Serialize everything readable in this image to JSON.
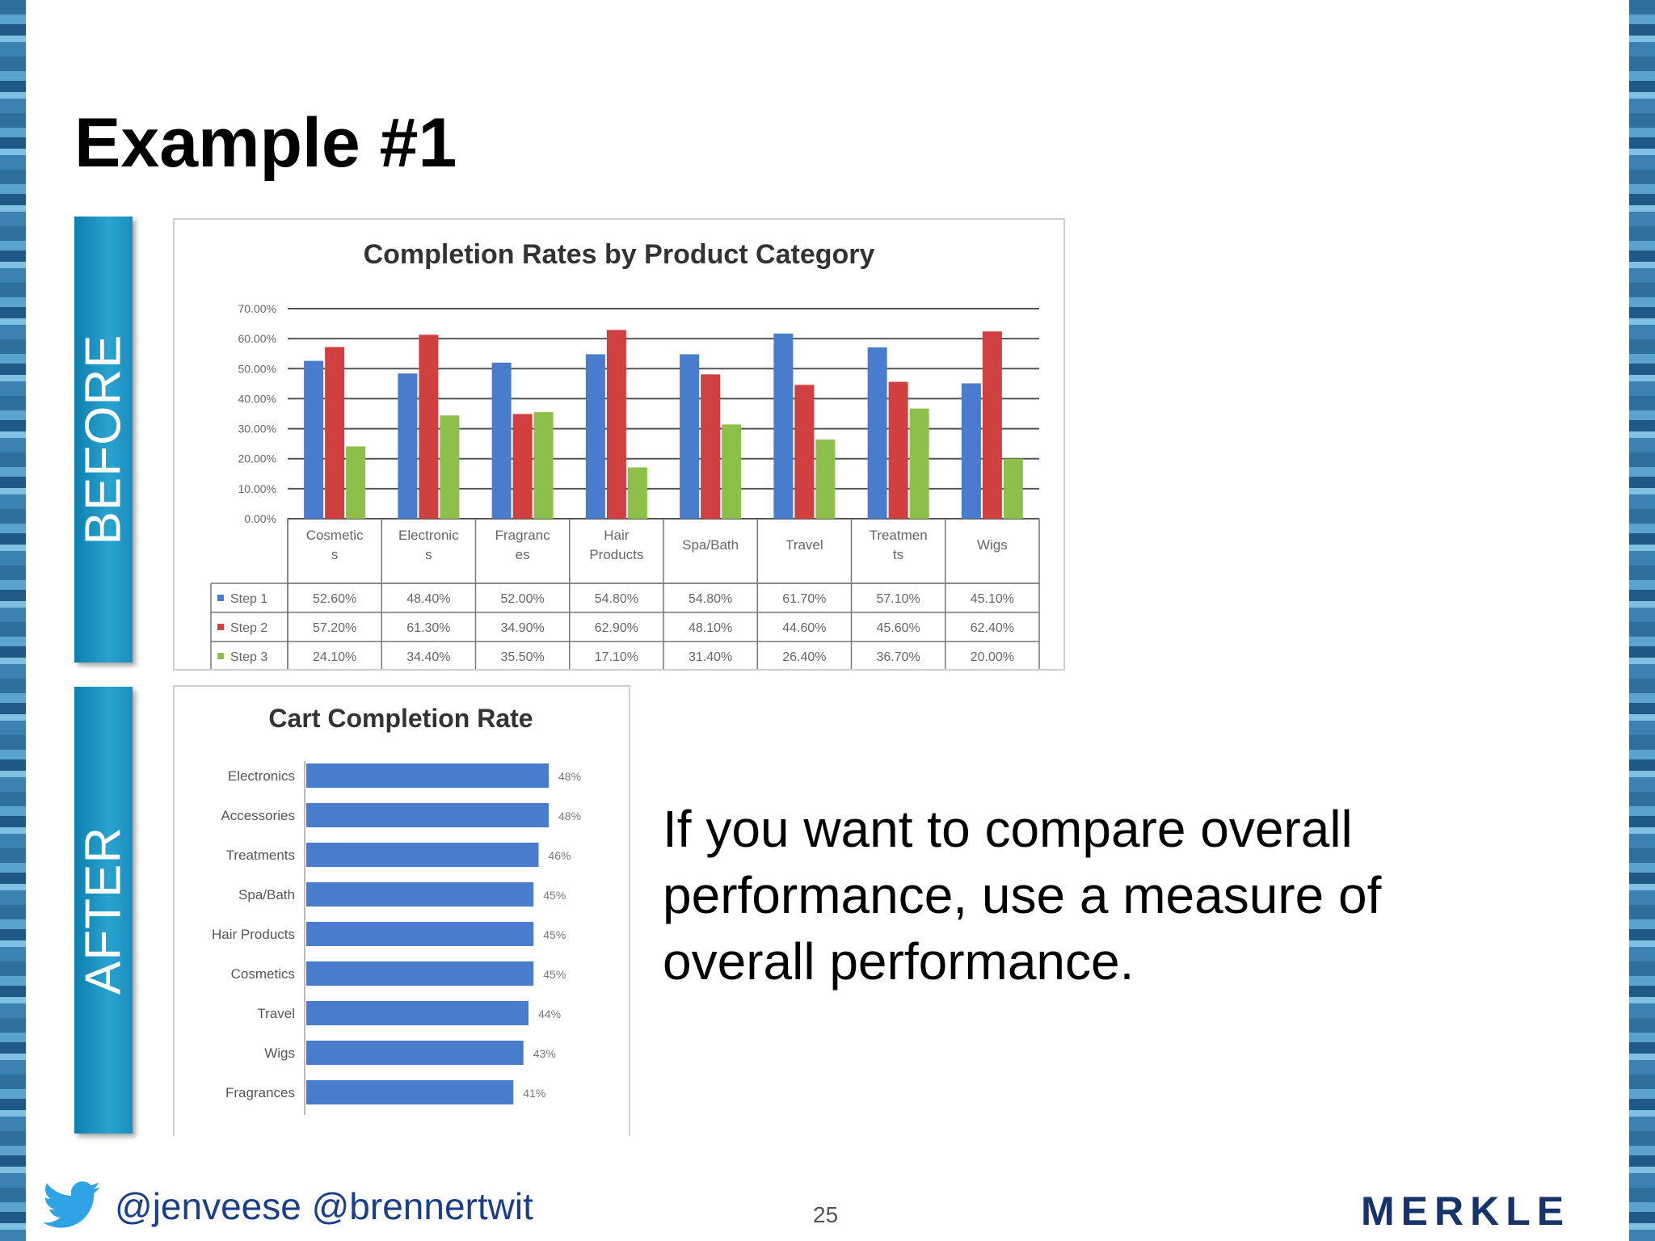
{
  "slide": {
    "title": "Example #1",
    "before_label": "BEFORE",
    "after_label": "AFTER",
    "body_text": "If you want to compare overall performance, use a measure of overall performance.",
    "handles": "@jenveese @brennertwit",
    "page_number": "25",
    "logo_text": "MERKLE",
    "icons": [
      "twitter-bird-icon"
    ],
    "colors": {
      "accent": "#1a8cbd",
      "step1": "#4a7ccd",
      "step2": "#d04040",
      "step3": "#8dc04a",
      "bar": "#4a7ccd",
      "logo": "#17336b"
    }
  },
  "chart_data": [
    {
      "type": "bar",
      "title": "Completion Rates by Product Category",
      "categories": [
        "Cosmetic s",
        "Electronic s",
        "Fragranc es",
        "Hair Products",
        "Spa/Bath",
        "Travel",
        "Treatmen ts",
        "Wigs"
      ],
      "series": [
        {
          "name": "Step 1",
          "values": [
            52.6,
            48.4,
            52.0,
            54.8,
            54.8,
            61.7,
            57.1,
            45.1
          ],
          "labels": [
            "52.60%",
            "48.40%",
            "52.00%",
            "54.80%",
            "54.80%",
            "61.70%",
            "57.10%",
            "45.10%"
          ]
        },
        {
          "name": "Step 2",
          "values": [
            57.2,
            61.3,
            34.9,
            62.9,
            48.1,
            44.6,
            45.6,
            62.4
          ],
          "labels": [
            "57.20%",
            "61.30%",
            "34.90%",
            "62.90%",
            "48.10%",
            "44.60%",
            "45.60%",
            "62.40%"
          ]
        },
        {
          "name": "Step 3",
          "values": [
            24.1,
            34.4,
            35.5,
            17.1,
            31.4,
            26.4,
            36.7,
            20.0
          ],
          "labels": [
            "24.10%",
            "34.40%",
            "35.50%",
            "17.10%",
            "31.40%",
            "26.40%",
            "36.70%",
            "20.00%"
          ]
        }
      ],
      "yticks": [
        "0.00%",
        "10.00%",
        "20.00%",
        "30.00%",
        "40.00%",
        "50.00%",
        "60.00%",
        "70.00%"
      ],
      "ylim": [
        0,
        70
      ],
      "grid": true,
      "legend": "data-table"
    },
    {
      "type": "bar",
      "orientation": "horizontal",
      "title": "Cart Completion Rate",
      "categories": [
        "Electronics",
        "Accessories",
        "Treatments",
        "Spa/Bath",
        "Hair Products",
        "Cosmetics",
        "Travel",
        "Wigs",
        "Fragrances"
      ],
      "values": [
        48,
        48,
        46,
        45,
        45,
        45,
        44,
        43,
        41
      ],
      "labels": [
        "48%",
        "48%",
        "46%",
        "45%",
        "45%",
        "45%",
        "44%",
        "43%",
        "41%"
      ],
      "xlim": [
        0,
        48
      ]
    }
  ]
}
